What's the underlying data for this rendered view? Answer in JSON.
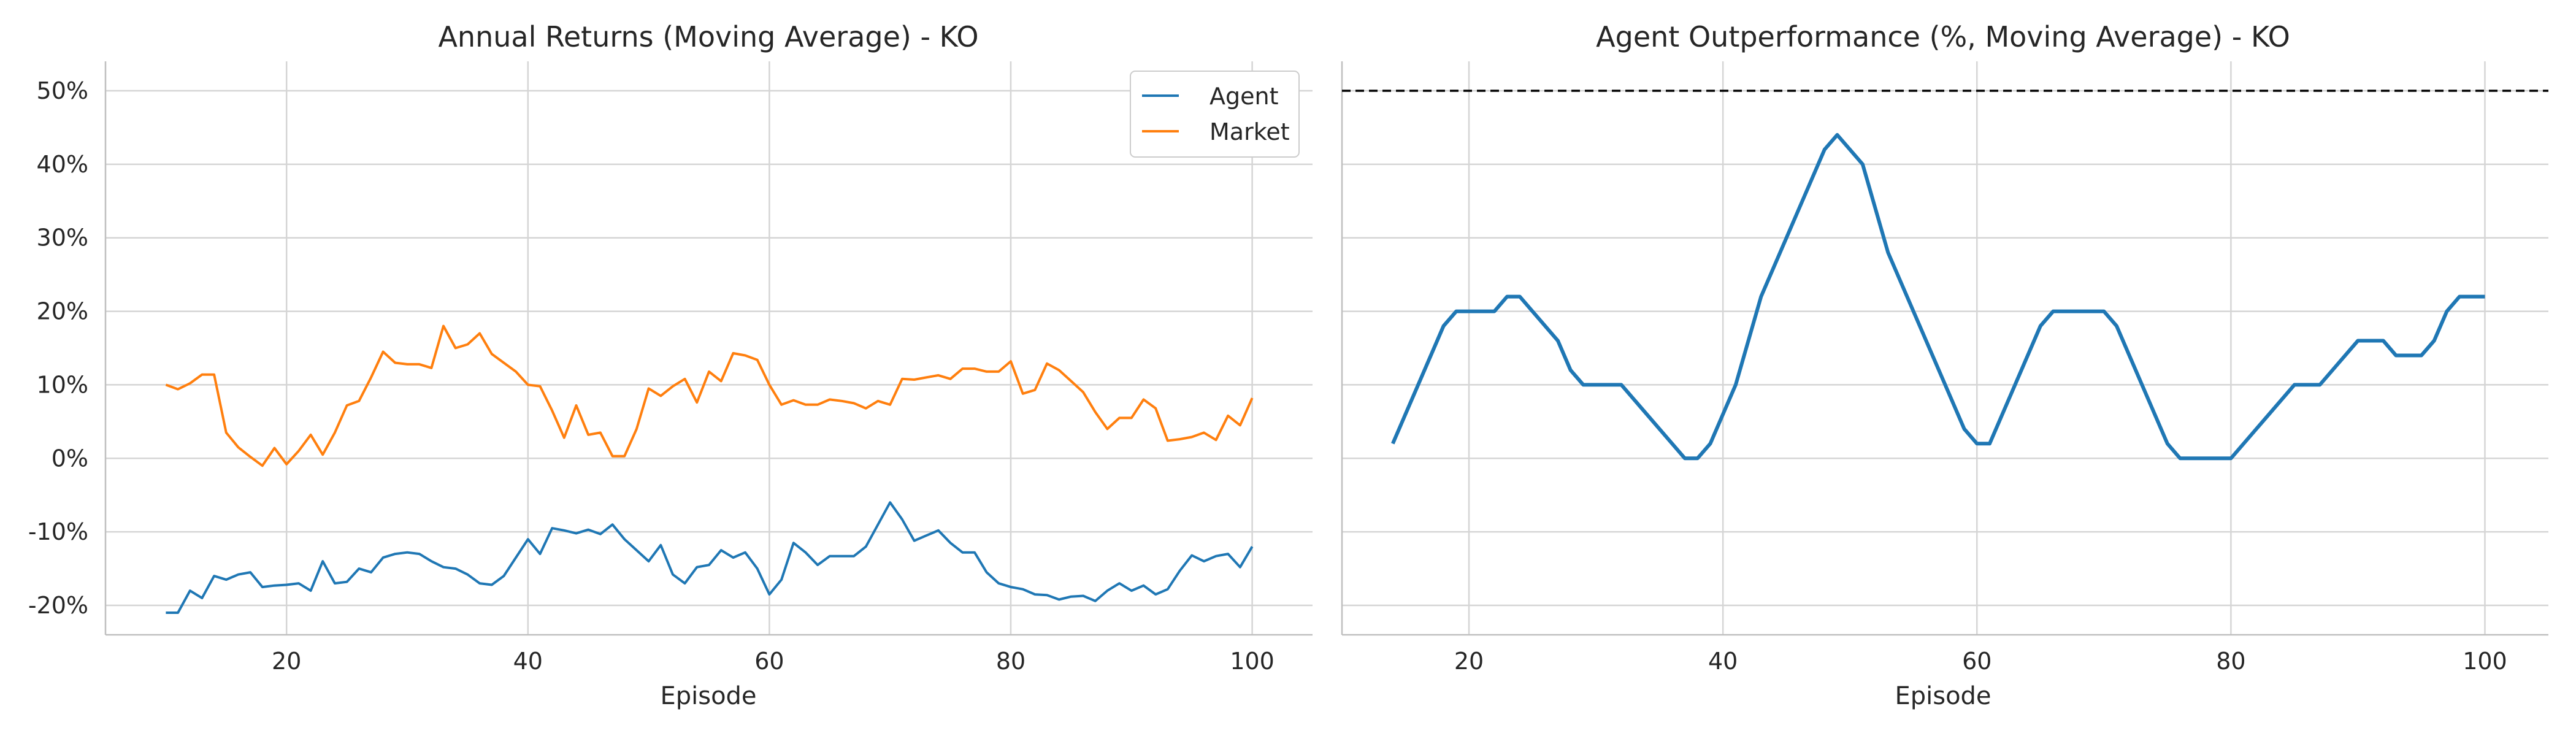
{
  "colors": {
    "agent": "#1f77b4",
    "market": "#ff7f0e",
    "grid": "#d5d5d5",
    "axis": "#bfbfbf",
    "reference": "#000000"
  },
  "chart_data": [
    {
      "type": "line",
      "title": "Annual Returns (Moving Average) - KO",
      "xlabel": "Episode",
      "ylabel": "",
      "xlim": [
        5,
        105
      ],
      "ylim": [
        -24,
        54
      ],
      "xticks": [
        20,
        40,
        60,
        80,
        100
      ],
      "xtick_labels": [
        "20",
        "40",
        "60",
        "80",
        "100"
      ],
      "yticks": [
        -20,
        -10,
        0,
        10,
        20,
        30,
        40,
        50
      ],
      "ytick_labels": [
        "-20%",
        "-10%",
        "0%",
        "10%",
        "20%",
        "30%",
        "40%",
        "50%"
      ],
      "grid": true,
      "legend": {
        "placement": "top-right",
        "entries": [
          "Agent",
          "Market"
        ]
      },
      "x_start": 10,
      "series": [
        {
          "name": "Agent",
          "values": [
            -21,
            -21,
            -18,
            -19,
            -16,
            -16.5,
            -15.8,
            -15.5,
            -17.5,
            -17.3,
            -17.2,
            -17,
            -18,
            -14,
            -17,
            -16.8,
            -15,
            -15.5,
            -13.5,
            -13,
            -12.8,
            -13,
            -14,
            -14.8,
            -15,
            -15.8,
            -17,
            -17.2,
            -16,
            -13.5,
            -11,
            -13,
            -9.5,
            -9.8,
            -10.2,
            -9.7,
            -10.3,
            -9,
            -11,
            -12.5,
            -14,
            -11.8,
            -15.8,
            -17,
            -14.8,
            -14.5,
            -12.5,
            -13.5,
            -12.8,
            -15,
            -18.5,
            -16.5,
            -11.5,
            -12.8,
            -14.5,
            -13.3,
            -13.3,
            -13.3,
            -12,
            -9,
            -6,
            -8.3,
            -11.2,
            -10.5,
            -9.8,
            -11.5,
            -12.8,
            -12.8,
            -15.5,
            -17,
            -17.5,
            -17.8,
            -18.5,
            -18.6,
            -19.2,
            -18.8,
            -18.7,
            -19.4,
            -18,
            -17,
            -18,
            -17.3,
            -18.5,
            -17.8,
            -15.3,
            -13.2,
            -14,
            -13.3,
            -13,
            -14.8,
            -12
          ]
        },
        {
          "name": "Market",
          "values": [
            10,
            9.4,
            10.2,
            11.4,
            11.4,
            3.5,
            1.5,
            0.2,
            -1,
            1.4,
            -0.8,
            1,
            3.2,
            0.5,
            3.5,
            7.2,
            7.8,
            11,
            14.5,
            13,
            12.8,
            12.8,
            12.3,
            18,
            15,
            15.5,
            17,
            14.2,
            13,
            11.8,
            10,
            9.8,
            6.5,
            2.8,
            7.2,
            3.2,
            3.5,
            0.3,
            0.3,
            4,
            9.5,
            8.5,
            9.8,
            10.8,
            7.6,
            11.8,
            10.5,
            14.3,
            14,
            13.4,
            10,
            7.3,
            7.9,
            7.3,
            7.3,
            8,
            7.8,
            7.5,
            6.8,
            7.8,
            7.3,
            10.8,
            10.7,
            11,
            11.3,
            10.8,
            12.2,
            12.2,
            11.8,
            11.8,
            13.2,
            8.8,
            9.3,
            12.9,
            12,
            10.5,
            9,
            6.3,
            4,
            5.5,
            5.5,
            8,
            6.8,
            2.4,
            2.6,
            2.9,
            3.5,
            2.5,
            5.8,
            4.5,
            8.2
          ]
        }
      ]
    },
    {
      "type": "line",
      "title": "Agent Outperformance (%, Moving Average) - KO",
      "xlabel": "Episode",
      "ylabel": "",
      "xlim": [
        10,
        105
      ],
      "ylim": [
        -24,
        54
      ],
      "xticks": [
        20,
        40,
        60,
        80,
        100
      ],
      "xtick_labels": [
        "20",
        "40",
        "60",
        "80",
        "100"
      ],
      "yticks": [
        -20,
        -10,
        0,
        10,
        20,
        30,
        40,
        50
      ],
      "grid": true,
      "reference_line": {
        "y": 50,
        "style": "dashed"
      },
      "series": [
        {
          "name": "",
          "points": [
            [
              14,
              2
            ],
            [
              16,
              10
            ],
            [
              18,
              18
            ],
            [
              19,
              20
            ],
            [
              22,
              20
            ],
            [
              23,
              22
            ],
            [
              24,
              22
            ],
            [
              27,
              16
            ],
            [
              28,
              12
            ],
            [
              29,
              10
            ],
            [
              32,
              10
            ],
            [
              37,
              0
            ],
            [
              38,
              0
            ],
            [
              39,
              2
            ],
            [
              41,
              10
            ],
            [
              43,
              22
            ],
            [
              48,
              42
            ],
            [
              49,
              44
            ],
            [
              51,
              40
            ],
            [
              53,
              28
            ],
            [
              59,
              4
            ],
            [
              60,
              2
            ],
            [
              61,
              2
            ],
            [
              65,
              18
            ],
            [
              66,
              20
            ],
            [
              70,
              20
            ],
            [
              71,
              18
            ],
            [
              75,
              2
            ],
            [
              76,
              0
            ],
            [
              80,
              0
            ],
            [
              85,
              10
            ],
            [
              87,
              10
            ],
            [
              90,
              16
            ],
            [
              92,
              16
            ],
            [
              93,
              14
            ],
            [
              95,
              14
            ],
            [
              96,
              16
            ],
            [
              97,
              20
            ],
            [
              98,
              22
            ],
            [
              100,
              22
            ]
          ]
        }
      ]
    }
  ]
}
